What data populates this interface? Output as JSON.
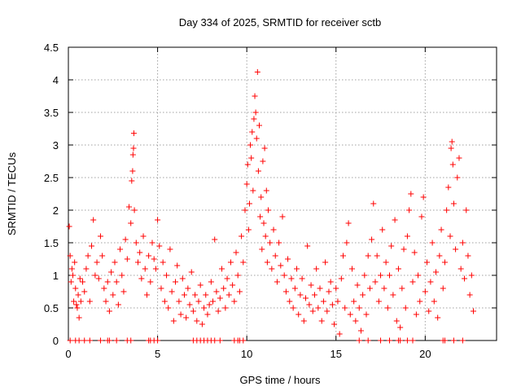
{
  "chart_data": {
    "type": "scatter",
    "title": "Day 334 of 2025, SRMTID for receiver sctb",
    "xlabel": "GPS time / hours",
    "ylabel": "SRMTID / TECUs",
    "xlim": [
      0,
      24
    ],
    "ylim": [
      0,
      4.5
    ],
    "x_ticks": [
      0,
      5,
      10,
      15,
      20
    ],
    "x_tick_labels": [
      "0",
      "5",
      "10",
      "15",
      "20"
    ],
    "y_ticks": [
      0,
      0.5,
      1,
      1.5,
      2,
      2.5,
      3,
      3.5,
      4,
      4.5
    ],
    "y_tick_labels": [
      "0",
      "0.5",
      "1",
      "1.5",
      "2",
      "2.5",
      "3",
      "3.5",
      "4",
      "4.5"
    ],
    "grid": true,
    "marker": "+",
    "series": [
      {
        "name": "SRMTID",
        "color": "#ff0000",
        "points": [
          [
            0.05,
            1.75
          ],
          [
            0.1,
            1.3
          ],
          [
            0.15,
            0.9
          ],
          [
            0.2,
            1.1
          ],
          [
            0.25,
            1.0
          ],
          [
            0.3,
            0.6
          ],
          [
            0.35,
            1.2
          ],
          [
            0.4,
            0.8
          ],
          [
            0.45,
            0.55
          ],
          [
            0.5,
            0.5
          ],
          [
            0.55,
            0.7
          ],
          [
            0.6,
            0.35
          ],
          [
            0.65,
            0.95
          ],
          [
            0.7,
            0.6
          ],
          [
            0.8,
            0.9
          ],
          [
            0.9,
            0.75
          ],
          [
            1.0,
            1.1
          ],
          [
            1.1,
            1.3
          ],
          [
            1.2,
            0.6
          ],
          [
            1.3,
            1.45
          ],
          [
            1.4,
            1.85
          ],
          [
            1.5,
            1.0
          ],
          [
            1.6,
            1.2
          ],
          [
            1.7,
            0.95
          ],
          [
            1.8,
            1.6
          ],
          [
            1.9,
            1.3
          ],
          [
            2.0,
            0.8
          ],
          [
            2.1,
            0.6
          ],
          [
            2.2,
            0.9
          ],
          [
            2.3,
            0.45
          ],
          [
            2.4,
            1.05
          ],
          [
            2.5,
            0.7
          ],
          [
            2.6,
            1.2
          ],
          [
            2.7,
            0.9
          ],
          [
            2.8,
            0.55
          ],
          [
            2.9,
            1.4
          ],
          [
            3.0,
            1.0
          ],
          [
            3.1,
            0.75
          ],
          [
            3.2,
            1.55
          ],
          [
            3.3,
            1.25
          ],
          [
            3.4,
            2.05
          ],
          [
            3.5,
            1.8
          ],
          [
            3.55,
            2.45
          ],
          [
            3.6,
            2.6
          ],
          [
            3.62,
            2.85
          ],
          [
            3.65,
            2.95
          ],
          [
            3.67,
            3.18
          ],
          [
            3.7,
            2.0
          ],
          [
            3.8,
            1.5
          ],
          [
            3.9,
            1.2
          ],
          [
            4.0,
            1.35
          ],
          [
            4.1,
            0.95
          ],
          [
            4.2,
            1.6
          ],
          [
            4.3,
            1.1
          ],
          [
            4.4,
            0.7
          ],
          [
            4.5,
            1.3
          ],
          [
            4.6,
            0.9
          ],
          [
            4.7,
            1.5
          ],
          [
            4.8,
            1.25
          ],
          [
            4.9,
            1.1
          ],
          [
            5.0,
            1.85
          ],
          [
            5.1,
            1.45
          ],
          [
            5.2,
            0.8
          ],
          [
            5.3,
            1.2
          ],
          [
            5.4,
            0.6
          ],
          [
            5.5,
            1.0
          ],
          [
            5.6,
            0.5
          ],
          [
            5.7,
            1.4
          ],
          [
            5.8,
            0.75
          ],
          [
            5.9,
            0.3
          ],
          [
            6.0,
            0.9
          ],
          [
            6.1,
            1.15
          ],
          [
            6.2,
            0.6
          ],
          [
            6.3,
            0.4
          ],
          [
            6.4,
            0.95
          ],
          [
            6.5,
            0.7
          ],
          [
            6.6,
            0.35
          ],
          [
            6.7,
            0.8
          ],
          [
            6.8,
            0.55
          ],
          [
            6.9,
            1.05
          ],
          [
            7.0,
            0.45
          ],
          [
            7.1,
            0.7
          ],
          [
            7.2,
            0.3
          ],
          [
            7.3,
            0.6
          ],
          [
            7.4,
            0.85
          ],
          [
            7.5,
            0.25
          ],
          [
            7.6,
            0.5
          ],
          [
            7.7,
            0.7
          ],
          [
            7.8,
            0.4
          ],
          [
            7.9,
            0.55
          ],
          [
            8.0,
            0.9
          ],
          [
            8.1,
            0.6
          ],
          [
            8.2,
            1.55
          ],
          [
            8.3,
            0.75
          ],
          [
            8.4,
            0.45
          ],
          [
            8.5,
            0.65
          ],
          [
            8.6,
            1.1
          ],
          [
            8.7,
            0.8
          ],
          [
            8.8,
            0.5
          ],
          [
            8.9,
            0.95
          ],
          [
            9.0,
            0.7
          ],
          [
            9.1,
            1.2
          ],
          [
            9.2,
            0.85
          ],
          [
            9.3,
            0.6
          ],
          [
            9.4,
            1.35
          ],
          [
            9.5,
            1.0
          ],
          [
            9.6,
            0.75
          ],
          [
            9.7,
            1.6
          ],
          [
            9.8,
            1.2
          ],
          [
            9.9,
            2.0
          ],
          [
            10.0,
            2.4
          ],
          [
            10.05,
            2.7
          ],
          [
            10.1,
            1.7
          ],
          [
            10.15,
            2.1
          ],
          [
            10.2,
            3.0
          ],
          [
            10.25,
            2.8
          ],
          [
            10.3,
            3.2
          ],
          [
            10.35,
            2.3
          ],
          [
            10.4,
            3.4
          ],
          [
            10.45,
            3.75
          ],
          [
            10.5,
            3.5
          ],
          [
            10.55,
            3.1
          ],
          [
            10.6,
            4.12
          ],
          [
            10.65,
            2.6
          ],
          [
            10.7,
            3.3
          ],
          [
            10.75,
            1.9
          ],
          [
            10.8,
            2.2
          ],
          [
            10.85,
            1.4
          ],
          [
            10.9,
            2.75
          ],
          [
            10.95,
            1.8
          ],
          [
            11.0,
            2.95
          ],
          [
            11.05,
            1.6
          ],
          [
            11.1,
            2.3
          ],
          [
            11.15,
            1.2
          ],
          [
            11.2,
            2.0
          ],
          [
            11.3,
            1.5
          ],
          [
            11.4,
            1.1
          ],
          [
            11.5,
            1.7
          ],
          [
            11.6,
            1.3
          ],
          [
            11.7,
            0.9
          ],
          [
            11.8,
            1.5
          ],
          [
            11.9,
            1.15
          ],
          [
            12.0,
            1.9
          ],
          [
            12.1,
            1.0
          ],
          [
            12.2,
            0.75
          ],
          [
            12.3,
            1.25
          ],
          [
            12.4,
            0.6
          ],
          [
            12.5,
            0.95
          ],
          [
            12.6,
            0.5
          ],
          [
            12.7,
            0.8
          ],
          [
            12.8,
            1.1
          ],
          [
            12.9,
            0.4
          ],
          [
            13.0,
            0.7
          ],
          [
            13.1,
            0.95
          ],
          [
            13.2,
            0.3
          ],
          [
            13.3,
            0.65
          ],
          [
            13.4,
            1.45
          ],
          [
            13.5,
            0.55
          ],
          [
            13.6,
            0.85
          ],
          [
            13.7,
            0.45
          ],
          [
            13.8,
            0.7
          ],
          [
            13.9,
            1.1
          ],
          [
            14.0,
            0.5
          ],
          [
            14.1,
            0.8
          ],
          [
            14.2,
            0.3
          ],
          [
            14.3,
            0.6
          ],
          [
            14.4,
            1.2
          ],
          [
            14.5,
            0.45
          ],
          [
            14.6,
            0.75
          ],
          [
            14.7,
            0.9
          ],
          [
            14.8,
            0.55
          ],
          [
            14.9,
            0.25
          ],
          [
            15.0,
            0.8
          ],
          [
            15.1,
            0.6
          ],
          [
            15.2,
            0.1
          ],
          [
            15.3,
            0.95
          ],
          [
            15.4,
            1.3
          ],
          [
            15.5,
            0.5
          ],
          [
            15.6,
            1.5
          ],
          [
            15.7,
            1.8
          ],
          [
            15.8,
            0.4
          ],
          [
            15.9,
            1.1
          ],
          [
            16.0,
            0.6
          ],
          [
            16.1,
            0.3
          ],
          [
            16.2,
            0.85
          ],
          [
            16.3,
            0.5
          ],
          [
            16.4,
            0.15
          ],
          [
            16.5,
            0.7
          ],
          [
            16.6,
            1.0
          ],
          [
            16.7,
            0.4
          ],
          [
            16.8,
            1.3
          ],
          [
            16.9,
            0.8
          ],
          [
            17.0,
            1.55
          ],
          [
            17.1,
            2.1
          ],
          [
            17.2,
            0.9
          ],
          [
            17.3,
            1.3
          ],
          [
            17.4,
            0.6
          ],
          [
            17.5,
            1.0
          ],
          [
            17.6,
            1.7
          ],
          [
            17.7,
            0.8
          ],
          [
            17.8,
            1.2
          ],
          [
            17.9,
            0.5
          ],
          [
            18.0,
            1.0
          ],
          [
            18.1,
            1.45
          ],
          [
            18.2,
            0.7
          ],
          [
            18.3,
            1.85
          ],
          [
            18.4,
            0.3
          ],
          [
            18.5,
            1.1
          ],
          [
            18.6,
            0.2
          ],
          [
            18.7,
            0.8
          ],
          [
            18.8,
            1.4
          ],
          [
            18.9,
            0.5
          ],
          [
            19.0,
            1.6
          ],
          [
            19.1,
            2.0
          ],
          [
            19.2,
            2.25
          ],
          [
            19.3,
            0.9
          ],
          [
            19.4,
            1.35
          ],
          [
            19.5,
            0.4
          ],
          [
            19.6,
            1.0
          ],
          [
            19.7,
            0.6
          ],
          [
            19.8,
            1.9
          ],
          [
            19.9,
            2.2
          ],
          [
            20.0,
            0.75
          ],
          [
            20.1,
            1.2
          ],
          [
            20.2,
            0.45
          ],
          [
            20.3,
            0.9
          ],
          [
            20.4,
            1.5
          ],
          [
            20.5,
            0.6
          ],
          [
            20.6,
            1.05
          ],
          [
            20.7,
            0.35
          ],
          [
            20.8,
            1.3
          ],
          [
            20.9,
            1.7
          ],
          [
            21.0,
            0.8
          ],
          [
            21.1,
            1.2
          ],
          [
            21.2,
            2.0
          ],
          [
            21.3,
            2.35
          ],
          [
            21.4,
            1.6
          ],
          [
            21.45,
            2.95
          ],
          [
            21.5,
            3.05
          ],
          [
            21.55,
            2.7
          ],
          [
            21.6,
            2.1
          ],
          [
            21.7,
            1.4
          ],
          [
            21.8,
            2.5
          ],
          [
            21.9,
            2.8
          ],
          [
            22.0,
            1.1
          ],
          [
            22.1,
            1.5
          ],
          [
            22.2,
            0.95
          ],
          [
            22.3,
            2.0
          ],
          [
            22.4,
            1.3
          ],
          [
            22.5,
            0.7
          ],
          [
            22.6,
            1.0
          ],
          [
            22.7,
            0.45
          ]
        ],
        "zero_points": [
          0.1,
          0.4,
          0.6,
          0.9,
          1.2,
          1.8,
          2.2,
          2.3,
          2.7,
          3.3,
          3.5,
          4.5,
          4.6,
          4.8,
          5.0,
          7.0,
          7.2,
          7.4,
          7.6,
          7.8,
          8.0,
          8.2,
          8.5,
          9.3,
          9.5,
          9.6,
          9.8,
          16.3,
          16.8,
          17.5,
          18.0,
          18.5,
          18.6,
          19.0,
          19.3,
          21.0,
          21.1,
          21.6,
          22.1
        ]
      }
    ]
  }
}
